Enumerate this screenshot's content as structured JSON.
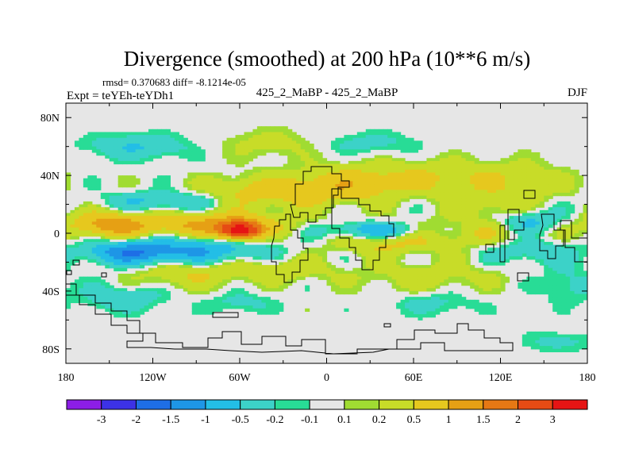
{
  "chart_data": {
    "type": "filled-contour-map",
    "title": "Divergence (smoothed) at 200 hPa (10**6 m/s)",
    "stats_text": "rmsd= 0.370683 diff= -8.1214e-05",
    "experiment_text": "Expt = teYEh-teYDh1",
    "center_label": "425_2_MaBP - 425_2_MaBP",
    "season": "DJF",
    "xlabel": "",
    "ylabel": "",
    "xlim": [
      -180,
      180
    ],
    "ylim": [
      -90,
      90
    ],
    "xticks": [
      {
        "value": -180,
        "label": "180"
      },
      {
        "value": -120,
        "label": "120W"
      },
      {
        "value": -60,
        "label": "60W"
      },
      {
        "value": 0,
        "label": "0"
      },
      {
        "value": 60,
        "label": "60E"
      },
      {
        "value": 120,
        "label": "120E"
      },
      {
        "value": 180,
        "label": "180"
      }
    ],
    "yticks": [
      {
        "value": 80,
        "label": "80N"
      },
      {
        "value": 40,
        "label": "40N"
      },
      {
        "value": 0,
        "label": "0"
      },
      {
        "value": -40,
        "label": "40S"
      },
      {
        "value": -80,
        "label": "80S"
      }
    ],
    "colorbar": {
      "colors": [
        "#8c1ee6",
        "#3c32e6",
        "#1e6ee6",
        "#1e96e6",
        "#23bee6",
        "#3cd2c8",
        "#28dc96",
        "#e6e6e6",
        "#a0dc32",
        "#c8dc28",
        "#e6c81e",
        "#e6a014",
        "#e67814",
        "#e64b14",
        "#e61414"
      ],
      "labels": [
        "-3",
        "-2",
        "-1.5",
        "-1",
        "-0.5",
        "-0.2",
        "-0.1",
        "0.1",
        "0.2",
        "0.5",
        "1",
        "1.5",
        "2",
        "3"
      ]
    },
    "field": {
      "description_units": "10**6 m/s",
      "blobs": [
        {
          "lon": -60,
          "lat": 2,
          "slon": 9,
          "slat": 4,
          "amp": 3.2
        },
        {
          "lon": -80,
          "lat": 6,
          "slon": 35,
          "slat": 6,
          "amp": 1.1
        },
        {
          "lon": -150,
          "lat": 6,
          "slon": 18,
          "slat": 6,
          "amp": 1.2
        },
        {
          "lon": -45,
          "lat": 28,
          "slon": 30,
          "slat": 8,
          "amp": 0.7
        },
        {
          "lon": 10,
          "lat": 32,
          "slon": 25,
          "slat": 8,
          "amp": 0.6
        },
        {
          "lon": 60,
          "lat": 38,
          "slon": 40,
          "slat": 9,
          "amp": 0.5
        },
        {
          "lon": 130,
          "lat": 35,
          "slon": 30,
          "slat": 10,
          "amp": 0.35
        },
        {
          "lon": 95,
          "lat": 0,
          "slon": 45,
          "slat": 7,
          "amp": 0.45
        },
        {
          "lon": 40,
          "lat": -8,
          "slon": 25,
          "slat": 5,
          "amp": 0.45
        },
        {
          "lon": -95,
          "lat": -28,
          "slon": 25,
          "slat": 7,
          "amp": 0.5
        },
        {
          "lon": -30,
          "lat": -25,
          "slon": 25,
          "slat": 6,
          "amp": 0.4
        },
        {
          "lon": 70,
          "lat": -30,
          "slon": 35,
          "slat": 8,
          "amp": 0.35
        },
        {
          "lon": -30,
          "lat": 62,
          "slon": 30,
          "slat": 7,
          "amp": 0.35
        },
        {
          "lon": -100,
          "lat": -12,
          "slon": 35,
          "slat": 6,
          "amp": -1.1
        },
        {
          "lon": -140,
          "lat": -14,
          "slon": 18,
          "slat": 5,
          "amp": -0.9
        },
        {
          "lon": 35,
          "lat": 2,
          "slon": 25,
          "slat": 4,
          "amp": -0.9
        },
        {
          "lon": -110,
          "lat": 22,
          "slon": 30,
          "slat": 5,
          "amp": -0.6
        },
        {
          "lon": -130,
          "lat": 60,
          "slon": 25,
          "slat": 6,
          "amp": -0.5
        },
        {
          "lon": 20,
          "lat": 62,
          "slon": 30,
          "slat": 6,
          "amp": -0.35
        },
        {
          "lon": 140,
          "lat": 8,
          "slon": 15,
          "slat": 6,
          "amp": -0.7
        },
        {
          "lon": 140,
          "lat": -12,
          "slon": 20,
          "slat": 6,
          "amp": -0.5
        },
        {
          "lon": -140,
          "lat": -45,
          "slon": 20,
          "slat": 6,
          "amp": -0.45
        },
        {
          "lon": -60,
          "lat": -48,
          "slon": 15,
          "slat": 5,
          "amp": -0.3
        },
        {
          "lon": 165,
          "lat": -35,
          "slon": 12,
          "slat": 8,
          "amp": -0.35
        },
        {
          "lon": 75,
          "lat": -48,
          "slon": 20,
          "slat": 6,
          "amp": -0.3
        },
        {
          "lon": 160,
          "lat": -75,
          "slon": 15,
          "slat": 5,
          "amp": -0.3
        },
        {
          "lon": 115,
          "lat": 18,
          "slon": 20,
          "slat": 6,
          "amp": 0.35
        }
      ]
    }
  }
}
